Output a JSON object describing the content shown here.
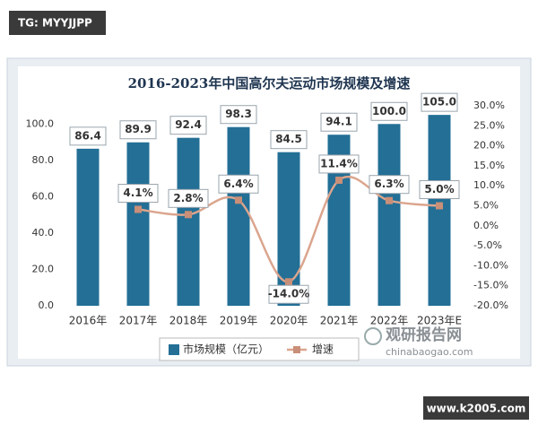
{
  "watermarks": {
    "tg": "TG: MYYJJPP",
    "site_logo": "观研报告网",
    "site_url": "chinabaogao.com",
    "footer": "www.k2005.com"
  },
  "chart_data": {
    "type": "bar",
    "title": "2016-2023年中国高尔夫运动市场规模及增速",
    "categories": [
      "2016年",
      "2017年",
      "2018年",
      "2019年",
      "2020年",
      "2021年",
      "2022年",
      "2023年E"
    ],
    "series": [
      {
        "name": "市场规模（亿元）",
        "type": "bar",
        "color": "#236f96",
        "values": [
          86.4,
          89.9,
          92.4,
          98.3,
          84.5,
          94.1,
          100.0,
          105.0
        ],
        "value_labels": [
          "86.4",
          "89.9",
          "92.4",
          "98.3",
          "84.5",
          "94.1",
          "100.0",
          "105.0"
        ]
      },
      {
        "name": "增速",
        "type": "line",
        "axis": "y2",
        "color": "#dba58e",
        "values": [
          null,
          4.1,
          2.8,
          6.4,
          -14.0,
          11.4,
          6.3,
          5.0
        ],
        "value_labels": [
          null,
          "4.1%",
          "2.8%",
          "6.4%",
          "-14.0%",
          "11.4%",
          "6.3%",
          "5.0%"
        ]
      }
    ],
    "ylim": [
      0,
      110
    ],
    "yticks": [
      {
        "value": 0,
        "label": "0.0"
      },
      {
        "value": 20,
        "label": "20.0"
      },
      {
        "value": 40,
        "label": "40.0"
      },
      {
        "value": 60,
        "label": "60.0"
      },
      {
        "value": 80,
        "label": "80.0"
      },
      {
        "value": 100,
        "label": "100.0"
      }
    ],
    "y2lim": [
      -20,
      30
    ],
    "y2ticks": [
      {
        "value": -20,
        "label": "-20.0%"
      },
      {
        "value": -15,
        "label": "-15.0%"
      },
      {
        "value": -10,
        "label": "-10.0%"
      },
      {
        "value": -5,
        "label": "-5.0%"
      },
      {
        "value": 0,
        "label": "0.0%"
      },
      {
        "value": 5,
        "label": "5.0%"
      },
      {
        "value": 10,
        "label": "10.0%"
      },
      {
        "value": 15,
        "label": "15.0%"
      },
      {
        "value": 20,
        "label": "20.0%"
      },
      {
        "value": 25,
        "label": "25.0%"
      },
      {
        "value": 30,
        "label": "30.0%"
      }
    ],
    "legend": "bottom"
  }
}
